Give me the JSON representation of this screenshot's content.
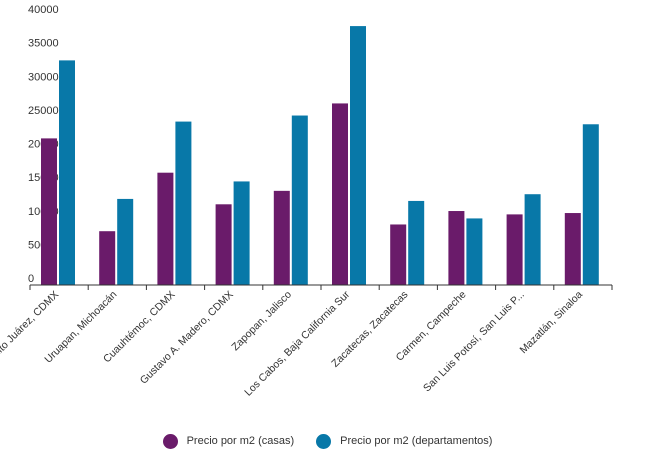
{
  "chart_data": {
    "type": "bar",
    "categories": [
      "Benito Juárez, CDMX",
      "Uruapan, Michoacán",
      "Cuauhtémoc, CDMX",
      "Gustavo A. Madero, CDMX",
      "Zapopan, Jalisco",
      "Los Cabos, Baja California Sur",
      "Zacatecas, Zacatecas",
      "Carmen, Campeche",
      "San Luis Potosí, San Luis P...",
      "Mazatlán, Sinaloa"
    ],
    "series": [
      {
        "name": "Precio por m2 (casas)",
        "color": "#6a1b6a",
        "values": [
          21800,
          8000,
          16700,
          12000,
          14000,
          27000,
          9000,
          11000,
          10500,
          10700
        ]
      },
      {
        "name": "Precio por m2 (departamentos)",
        "color": "#0878a8",
        "values": [
          33400,
          12800,
          24300,
          15400,
          25200,
          38500,
          12500,
          9900,
          13500,
          23900
        ]
      }
    ],
    "yticks": [
      0,
      5000,
      10000,
      15000,
      20000,
      25000,
      30000,
      35000,
      40000
    ],
    "ylim": [
      0,
      40000
    ],
    "grid": false,
    "legend_position": "bottom-center",
    "title": "",
    "xlabel": "",
    "ylabel": ""
  }
}
